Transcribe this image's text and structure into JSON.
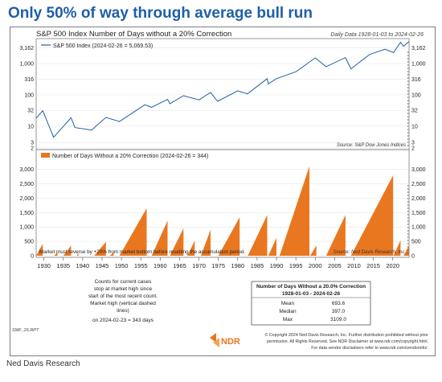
{
  "headline": "Only 50% of way through average bull run",
  "source_footer": "Ned Davis Research",
  "chart": {
    "title": "S&P 500 Index Number of Days without a 20% Correction",
    "daily_data_note": "Daily Data 1928-01-03 to 2024-02-26",
    "chart_id": "SMF_26.RPT",
    "top_legend": "S&P 500 Index (2024-02-26 = 5,069.53)",
    "top_source": "Source:  S&P Dow Jones Indices",
    "bottom_legend": "Number of Days Without a 20% Correction (2024-02-26 = 344)",
    "bottom_note": "Market must reverse by +20% from market bottom before resetting the accumulation period.",
    "bottom_source": "Source:  Ned Davis Research, Inc.",
    "counts_note": [
      "Counts for current cases",
      "stop at market high since",
      "start of the most recent count.",
      "Market high (vertical dashed",
      "lines)",
      "on 2024-02-23 = 343 days"
    ],
    "stats_table": {
      "title": "Number of Days Without a 20.0% Correction",
      "subtitle": "1928-01-03  -  2024-02-26",
      "rows": [
        {
          "label": "Mean",
          "value": "693.6"
        },
        {
          "label": "Median",
          "value": "397.0"
        },
        {
          "label": "Max",
          "value": "3109.0"
        }
      ]
    },
    "copyright": [
      "© Copyright 2024 Ned Davis Research, Inc. Further distribution prohibited without prior",
      "permission. All Rights Reserved. See NDR Disclaimer at  www.ndr.com/copyright.html.",
      "For data vendor disclaimers refer to www.ndr.com/vendorinfo/."
    ],
    "logo_text": "NDR",
    "colors": {
      "line": "#1f5fa8",
      "fill": "#e97720",
      "border": "#7d7d7d",
      "logo": "#e97720"
    }
  },
  "chart_data": [
    {
      "type": "line",
      "title": "S&P 500 Index Number of Days without a 20% Correction",
      "series": [
        {
          "name": "S&P 500 Index (2024-02-26 = 5,069.53)",
          "x": [
            1928,
            1929.7,
            1932.5,
            1937,
            1938,
            1942.3,
            1946,
            1949.5,
            1956,
            1957.8,
            1961.9,
            1962.5,
            1966,
            1970,
            1973,
            1974.8,
            1980,
            1982.5,
            1987.6,
            1987.9,
            1990,
            1995,
            2000,
            2002.8,
            2007.8,
            2009.2,
            2014,
            2018,
            2020.2,
            2022,
            2022.8,
            2024.15
          ],
          "y": [
            18,
            31,
            4.4,
            18.6,
            9,
            7.5,
            19,
            14,
            48,
            40,
            72,
            52,
            94,
            69,
            120,
            62,
            135,
            108,
            330,
            224,
            330,
            550,
            1520,
            800,
            1560,
            680,
            1950,
            2900,
            2250,
            4790,
            3580,
            5069.53
          ]
        }
      ],
      "y_ticks": [
        "2",
        "3",
        "10",
        "32",
        "100",
        "316",
        "1,000",
        "3,162"
      ],
      "log_scale": true,
      "ylim": [
        2,
        5600
      ],
      "xlim": [
        1928,
        2024.2
      ]
    },
    {
      "type": "area",
      "title": "Number of Days Without a 20% Correction",
      "series": [
        {
          "name": "Number of Days Without a 20% Correction (2024-02-26 = 344)",
          "episodes": [
            [
              1928,
              1929.7,
              420
            ],
            [
              1932.6,
              1933.5,
              120
            ],
            [
              1935,
              1937,
              350
            ],
            [
              1938.5,
              1938.9,
              110
            ],
            [
              1943,
              1946,
              480
            ],
            [
              1947,
              1948,
              120
            ],
            [
              1949.5,
              1956.5,
              1650
            ],
            [
              1957.8,
              1961.9,
              1220
            ],
            [
              1962.5,
              1966,
              950
            ],
            [
              1967,
              1968.9,
              520
            ],
            [
              1970.5,
              1973,
              900
            ],
            [
              1975,
              1980.5,
              1340
            ],
            [
              1982.6,
              1987.6,
              1420
            ],
            [
              1987.9,
              1990,
              620
            ],
            [
              1990.8,
              1998.5,
              3109
            ],
            [
              1998.7,
              2000.3,
              360
            ],
            [
              2002.8,
              2007.8,
              1420
            ],
            [
              2009.2,
              2020.1,
              2800
            ],
            [
              2020.2,
              2022,
              540
            ],
            [
              2022.8,
              2024.15,
              344
            ]
          ]
        }
      ],
      "y_ticks": [
        "0",
        "500",
        "1,000",
        "1,500",
        "2,000",
        "2,500",
        "3,000"
      ],
      "x_ticks": [
        "1930",
        "1935",
        "1940",
        "1945",
        "1950",
        "1955",
        "1960",
        "1965",
        "1970",
        "1975",
        "1980",
        "1985",
        "1990",
        "1995",
        "2000",
        "2005",
        "2010",
        "2015",
        "2020"
      ],
      "ylim": [
        0,
        3300
      ],
      "xlim": [
        1928,
        2024.2
      ]
    }
  ]
}
